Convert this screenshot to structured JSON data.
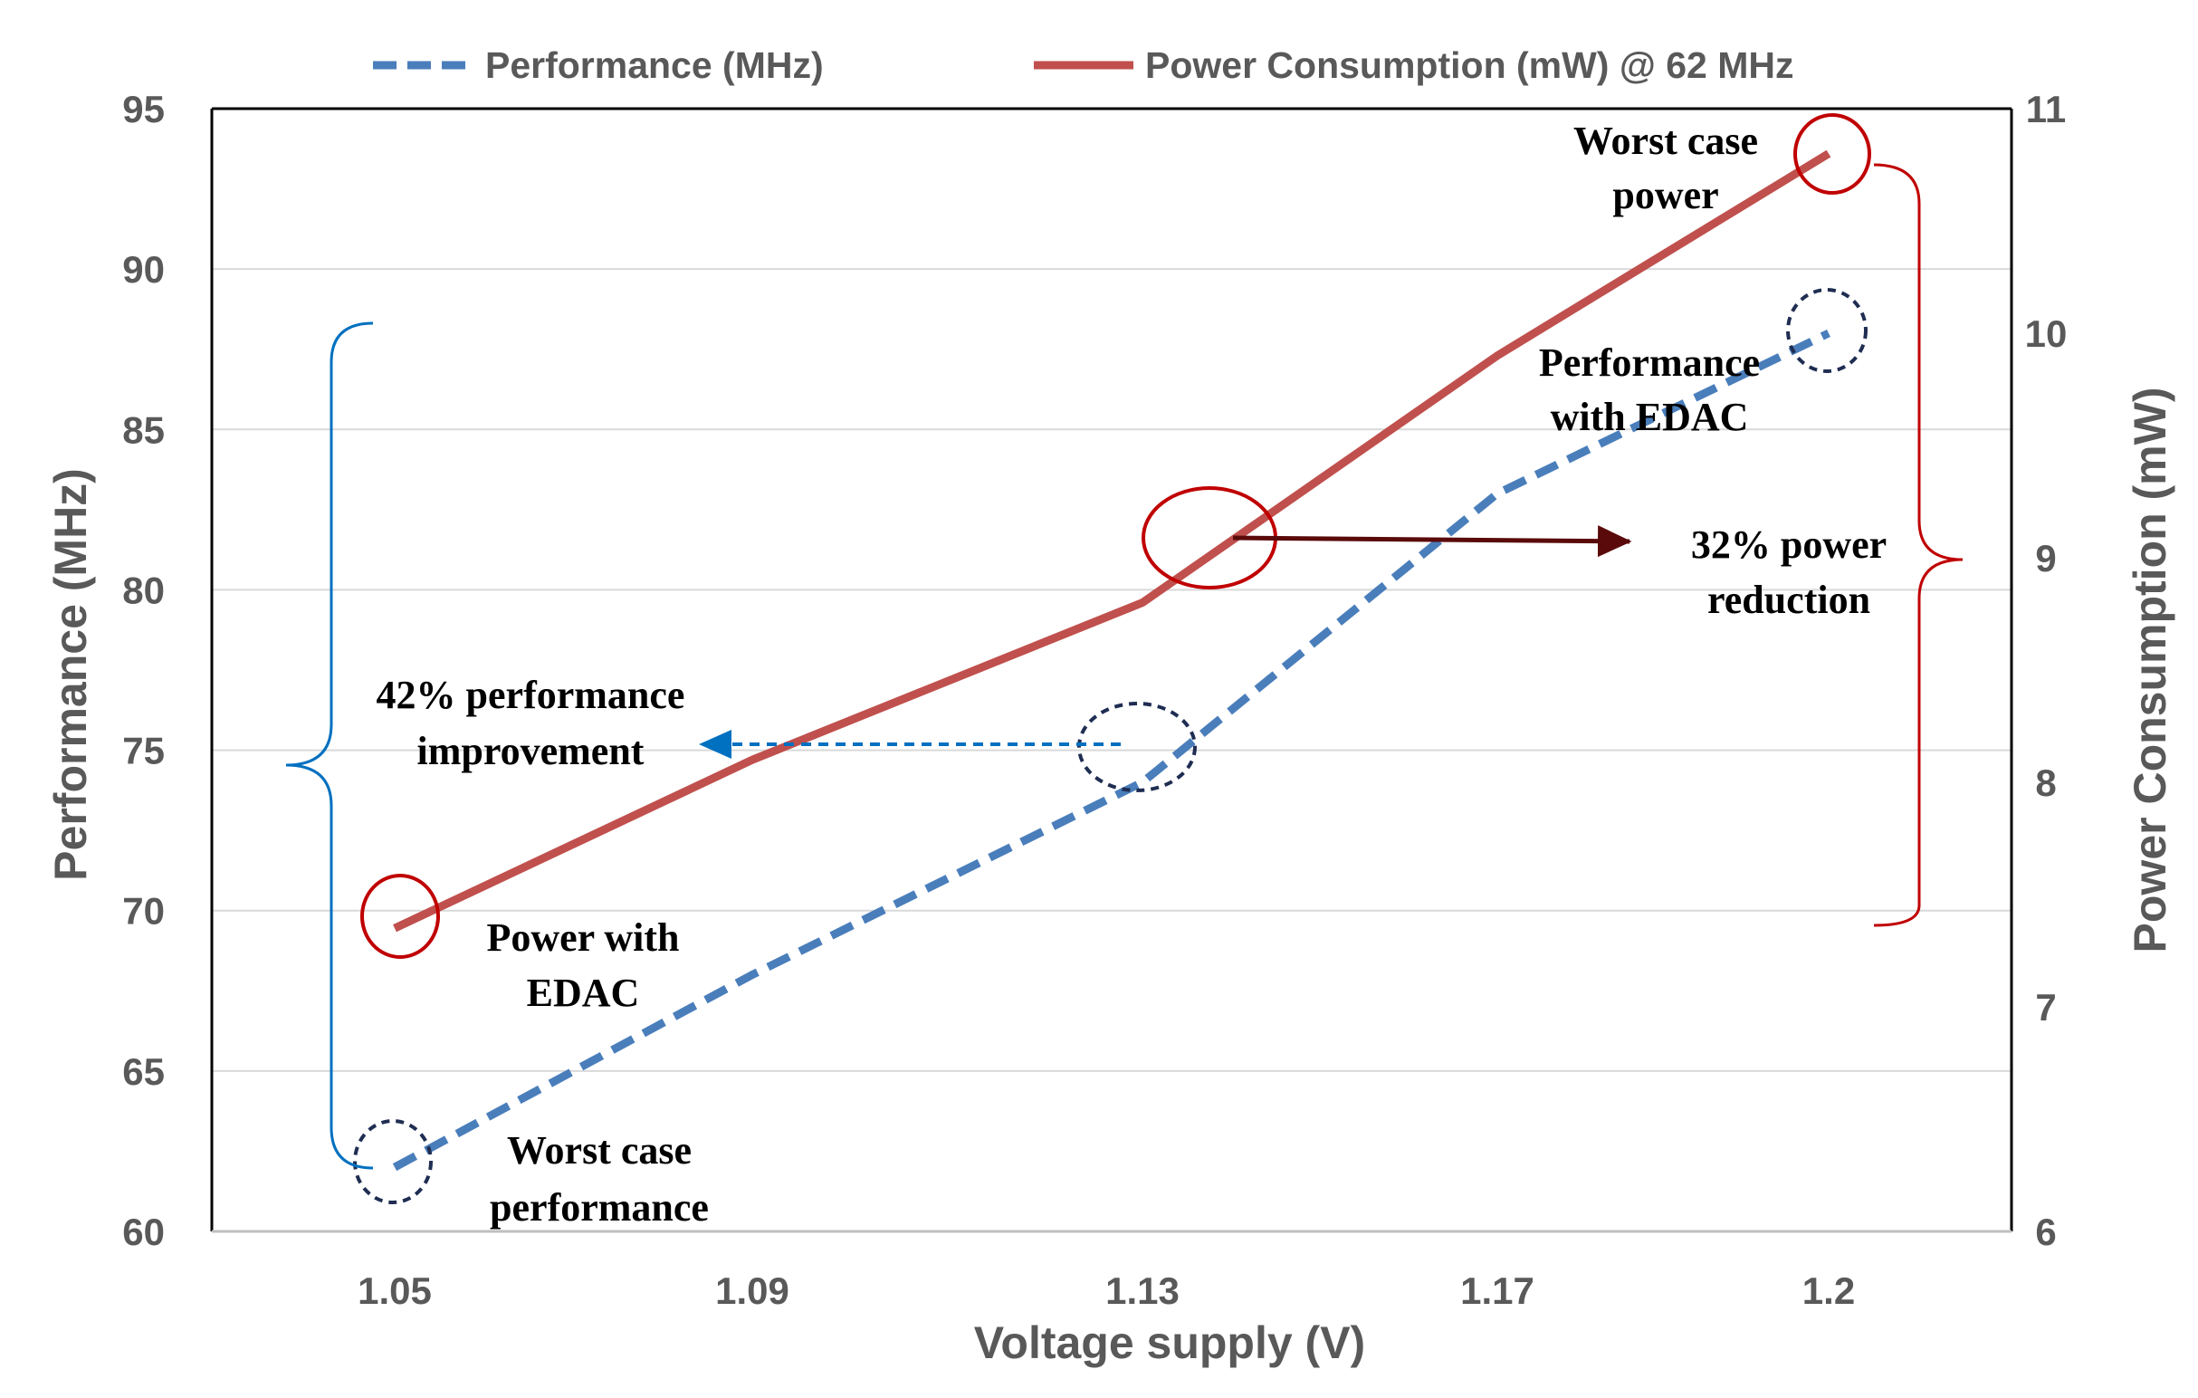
{
  "chart_data": {
    "type": "line",
    "title": "",
    "xlabel": "Voltage supply (V)",
    "ylabel": "Performance (MHz)",
    "y2label": "Power Consumption (mW)",
    "categories": [
      "1.05",
      "1.09",
      "1.13",
      "1.17",
      "1.2"
    ],
    "ylim": [
      60,
      95
    ],
    "yticks": [
      60,
      65,
      70,
      75,
      80,
      85,
      90,
      95
    ],
    "y2lim": [
      6,
      11
    ],
    "y2ticks": [
      6,
      7,
      8,
      9,
      10,
      11
    ],
    "grid": true,
    "legend_position": "top",
    "series": [
      {
        "name": "Performance (MHz)",
        "axis": "left",
        "style": "dashed",
        "color": "#4A7EBB",
        "values": [
          62,
          68,
          74,
          83,
          88
        ]
      },
      {
        "name": "Power Consumption (mW) @ 62 MHz",
        "axis": "right",
        "style": "solid",
        "color": "#C0504D",
        "values": [
          7.35,
          8.1,
          8.8,
          9.9,
          10.8
        ]
      }
    ],
    "annotations": {
      "worst_case_power": [
        "Worst case",
        "power"
      ],
      "performance_with_edac": [
        "Performance",
        "with EDAC"
      ],
      "power_reduction": [
        "32% power",
        "reduction"
      ],
      "performance_improvement": [
        "42% performance",
        "improvement"
      ],
      "power_with_edac": [
        "Power with",
        "EDAC"
      ],
      "worst_case_performance": [
        "Worst case",
        "performance"
      ]
    }
  }
}
